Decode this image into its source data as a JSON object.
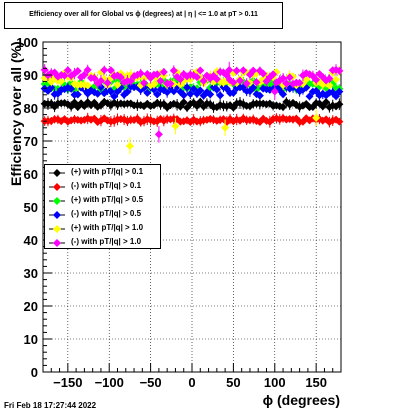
{
  "title": "Efficiency over all for Global vs ϕ (degrees) at |  η | <= 1.0 at pT > 0.11",
  "footer": "Fri Feb 18 17:27:44 2022",
  "chart_data": {
    "type": "scatter",
    "xlabel": "ϕ (degrees)",
    "ylabel": "Efficiency over all (%)",
    "xlim": [
      -180,
      180
    ],
    "ylim": [
      0,
      100
    ],
    "xticks": [
      -150,
      -100,
      -50,
      0,
      50,
      100,
      150
    ],
    "xtick_labels": [
      "−150",
      "−100",
      "−50",
      "0",
      "50",
      "100",
      "150"
    ],
    "yticks": [
      0,
      10,
      20,
      30,
      40,
      50,
      60,
      70,
      80,
      90,
      100
    ],
    "grid": true,
    "legend_position": "middle-left",
    "series": [
      {
        "name": "(+) with pT/|q| > 0.1",
        "color": "#000000",
        "level": 81.0,
        "spread": 0.9,
        "outliers": []
      },
      {
        "name": "(-) with pT/|q| > 0.1",
        "color": "#ff0000",
        "level": 76.3,
        "spread": 0.6,
        "outliers": []
      },
      {
        "name": "(+) with pT/|q| > 0.5",
        "color": "#00ff00",
        "level": 87.0,
        "spread": 1.5,
        "outliers": []
      },
      {
        "name": "(-) with pT/|q| > 0.5",
        "color": "#0000ff",
        "level": 85.0,
        "spread": 1.5,
        "outliers": []
      },
      {
        "name": "(+) with pT/|q| > 1.0",
        "color": "#ffff00",
        "level": 89.0,
        "spread": 2.2,
        "outliers": [
          [
            -75,
            68.5
          ],
          [
            -20,
            74.5
          ],
          [
            40,
            74.0
          ],
          [
            150,
            77.0
          ]
        ]
      },
      {
        "name": "(-) with pT/|q| > 1.0",
        "color": "#ff00ff",
        "level": 89.5,
        "spread": 2.2,
        "outliers": [
          [
            -40,
            72.0
          ],
          [
            45,
            91.5
          ],
          [
            100,
            85.0
          ]
        ]
      }
    ]
  }
}
